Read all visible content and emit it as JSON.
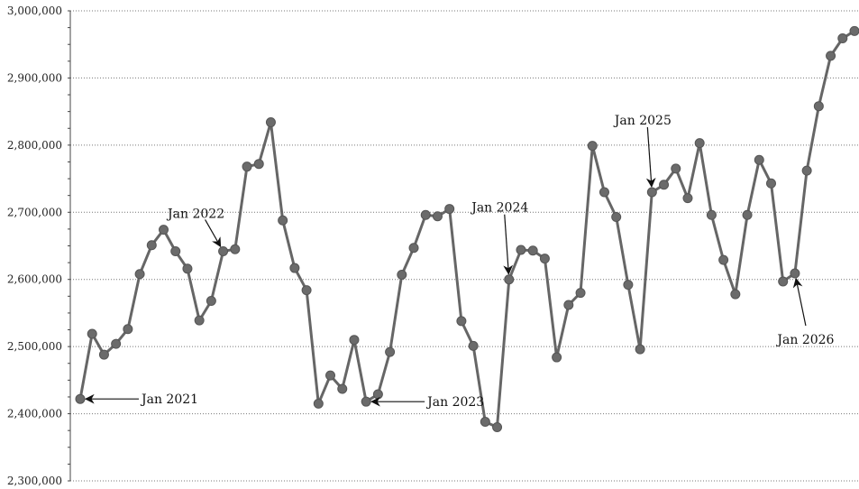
{
  "chart_data": {
    "type": "line",
    "title": "",
    "xlabel": "",
    "ylabel": "",
    "ylim": [
      2300000,
      3000000
    ],
    "yticks": [
      "2,300,000",
      "2,400,000",
      "2,500,000",
      "2,600,000",
      "2,700,000",
      "2,800,000",
      "2,900,000",
      "3,000,000"
    ],
    "ytick_values": [
      2300000,
      2400000,
      2500000,
      2600000,
      2700000,
      2800000,
      2900000,
      3000000
    ],
    "grid": true,
    "colors": {
      "line": "#666666",
      "marker": "#6b6b6b"
    },
    "x": [
      "2021-01",
      "2021-02",
      "2021-03",
      "2021-04",
      "2021-05",
      "2021-06",
      "2021-07",
      "2021-08",
      "2021-09",
      "2021-10",
      "2021-11",
      "2021-12",
      "2022-01",
      "2022-02",
      "2022-03",
      "2022-04",
      "2022-05",
      "2022-06",
      "2022-07",
      "2022-08",
      "2022-09",
      "2022-10",
      "2022-11",
      "2022-12",
      "2023-01",
      "2023-02",
      "2023-03",
      "2023-04",
      "2023-05",
      "2023-06",
      "2023-07",
      "2023-08",
      "2023-09",
      "2023-10",
      "2023-11",
      "2023-12",
      "2024-01",
      "2024-02",
      "2024-03",
      "2024-04",
      "2024-05",
      "2024-06",
      "2024-07",
      "2024-08",
      "2024-09",
      "2024-10",
      "2024-11",
      "2024-12",
      "2025-01",
      "2025-02",
      "2025-03",
      "2025-04",
      "2025-05",
      "2025-06",
      "2025-07",
      "2025-08",
      "2025-09",
      "2025-10",
      "2025-11",
      "2025-12",
      "2026-01",
      "2026-02",
      "2026-03",
      "2026-04",
      "2026-05",
      "2026-06"
    ],
    "values": [
      2422000,
      2519000,
      2488000,
      2504000,
      2526000,
      2608000,
      2651000,
      2674000,
      2642000,
      2616000,
      2539000,
      2568000,
      2642000,
      2645000,
      2768000,
      2772000,
      2834000,
      2688000,
      2617000,
      2584000,
      2415000,
      2457000,
      2437000,
      2510000,
      2418000,
      2429000,
      2492000,
      2607000,
      2647000,
      2696000,
      2694000,
      2705000,
      2538000,
      2501000,
      2388000,
      2380000,
      2600000,
      2644000,
      2643000,
      2631000,
      2484000,
      2562000,
      2580000,
      2799000,
      2730000,
      2693000,
      2592000,
      2496000,
      2730000,
      2741000,
      2765000,
      2721000,
      2803000,
      2696000,
      2629000,
      2578000,
      2696000,
      2778000,
      2743000,
      2597000,
      2609000,
      2762000,
      2858000,
      2933000,
      2959000,
      2970000
    ],
    "annotations": [
      {
        "label": "Jan 2021",
        "x": "2021-01",
        "placement": "right"
      },
      {
        "label": "Jan 2022",
        "x": "2022-01",
        "placement": "upper-left"
      },
      {
        "label": "Jan 2023",
        "x": "2023-01",
        "placement": "right"
      },
      {
        "label": "Jan 2024",
        "x": "2024-01",
        "placement": "above"
      },
      {
        "label": "Jan 2025",
        "x": "2025-01",
        "placement": "above"
      },
      {
        "label": "Jan 2026",
        "x": "2026-01",
        "placement": "below"
      }
    ]
  }
}
